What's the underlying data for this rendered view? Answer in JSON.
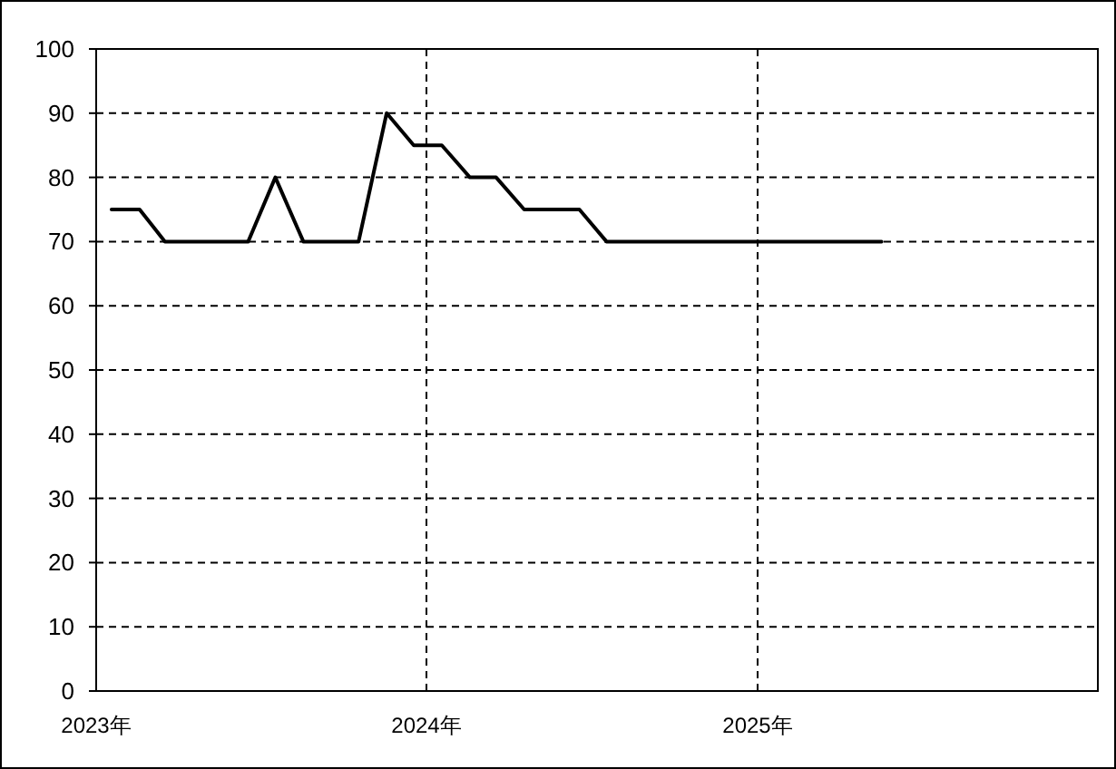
{
  "chart_data": {
    "type": "line",
    "x": [
      "2023-01-18",
      "2023-02-18",
      "2023-03-18",
      "2023-04-18",
      "2023-05-18",
      "2023-06-18",
      "2023-07-18",
      "2023-08-18",
      "2023-09-18",
      "2023-10-18",
      "2023-11-18",
      "2023-12-18",
      "2024-01-18",
      "2024-02-18",
      "2024-03-18",
      "2024-04-18",
      "2024-05-18",
      "2024-06-18",
      "2024-07-18",
      "2024-08-18",
      "2024-09-18",
      "2024-10-18",
      "2024-11-18",
      "2024-12-18",
      "2025-01-18",
      "2025-02-18",
      "2025-03-18",
      "2025-04-18",
      "2025-05-18"
    ],
    "series": [
      {
        "color": "#000000",
        "values": [
          75,
          75,
          70,
          70,
          70,
          70,
          80,
          70,
          70,
          70,
          90,
          85,
          85,
          80,
          80,
          75,
          75,
          75,
          70,
          70,
          70,
          70,
          70,
          70,
          70,
          70,
          70,
          70,
          70
        ]
      }
    ],
    "xlim": [
      "2023-01-01",
      "2026-01-12"
    ],
    "xticks": [
      {
        "value": "2023",
        "label": "2023年"
      },
      {
        "value": "2024",
        "label": "2024年"
      },
      {
        "value": "2025",
        "label": "2025年"
      }
    ],
    "ylim": [
      0,
      100
    ],
    "yticks": [
      0,
      10,
      20,
      30,
      40,
      50,
      60,
      70,
      80,
      90,
      100
    ],
    "grid": true,
    "line_style": "solid"
  }
}
